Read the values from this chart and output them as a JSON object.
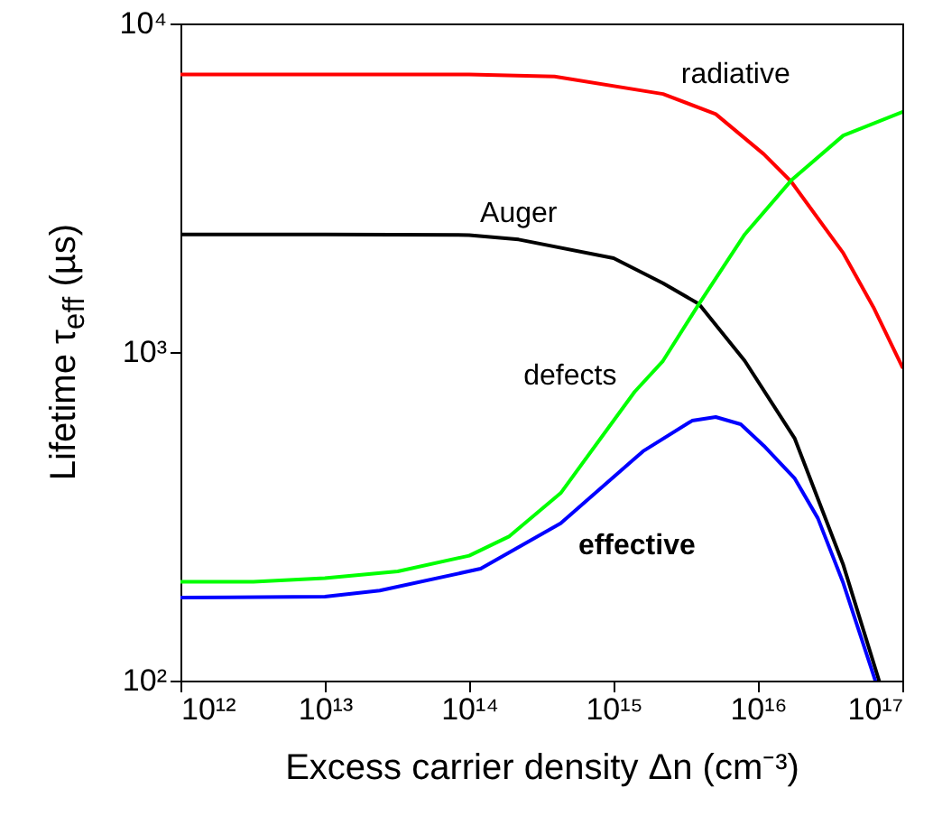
{
  "chart_data": {
    "type": "line",
    "xlabel": "Excess carrier density Δn (cm⁻³)",
    "ylabel": "Lifetime τ$_{eff}$ (µs)",
    "log": "xy",
    "grid": false,
    "marker": "none",
    "line_style": "solid",
    "xlim": [
      1000000000000.0,
      1e+17
    ],
    "ylim": [
      100,
      10000
    ],
    "xticks": [
      {
        "value": 1000000000000.0,
        "label": "10¹²"
      },
      {
        "value": 10000000000000.0,
        "label": "10¹³"
      },
      {
        "value": 100000000000000.0,
        "label": "10¹⁴"
      },
      {
        "value": 1000000000000000.0,
        "label": "10¹⁵"
      },
      {
        "value": 1e+16,
        "label": "10¹⁶"
      },
      {
        "value": 1e+17,
        "label": "10¹⁷"
      }
    ],
    "yticks": [
      {
        "value": 100,
        "label": "10²"
      },
      {
        "value": 1000,
        "label": "10³"
      },
      {
        "value": 10000,
        "label": "10⁴"
      }
    ],
    "series": [
      {
        "name": "radiative",
        "color": "#ff0000",
        "x": [
          1000000000000.0,
          10000000000000.0,
          100000000000000.0,
          390000000000000.0,
          2200000000000000.0,
          5100000000000000.0,
          1.1e+16,
          1.7e+16,
          3.9e+16,
          6.3e+16,
          1e+17
        ],
        "values": [
          7000,
          7000,
          7000,
          6900,
          6100,
          5300,
          4000,
          3300,
          2000,
          1370,
          900
        ]
      },
      {
        "name": "Auger",
        "color": "#000000",
        "x": [
          1000000000000.0,
          10000000000000.0,
          100000000000000.0,
          220000000000000.0,
          1000000000000000.0,
          2200000000000000.0,
          3900000000000000.0,
          8100000000000000.0,
          1.8e+16,
          3.9e+16,
          6.9e+16
        ],
        "values": [
          2280,
          2280,
          2270,
          2200,
          1930,
          1620,
          1400,
          940,
          545,
          225,
          100
        ]
      },
      {
        "name": "defects",
        "color": "#00ff00",
        "x": [
          1000000000000.0,
          3200000000000.0,
          10000000000000.0,
          32000000000000.0,
          100000000000000.0,
          190000000000000.0,
          430000000000000.0,
          1400000000000000.0,
          2200000000000000.0,
          3900000000000000.0,
          8100000000000000.0,
          1.7e+16,
          3.9e+16,
          1e+17
        ],
        "values": [
          200,
          200,
          205,
          215,
          240,
          275,
          372,
          757,
          940,
          1400,
          2280,
          3330,
          4560,
          5380
        ]
      },
      {
        "name": "effective",
        "color": "#0000ff",
        "x": [
          1000000000000.0,
          10000000000000.0,
          24000000000000.0,
          120000000000000.0,
          430000000000000.0,
          1600000000000000.0,
          3500000000000000.0,
          5100000000000000.0,
          7600000000000000.0,
          1.1e+16,
          1.8e+16,
          2.6e+16,
          3.9e+16,
          6.5e+16
        ],
        "values": [
          179,
          180,
          188,
          219,
          301,
          499,
          618,
          634,
          603,
          518,
          412,
          312,
          198,
          100
        ]
      }
    ]
  }
}
